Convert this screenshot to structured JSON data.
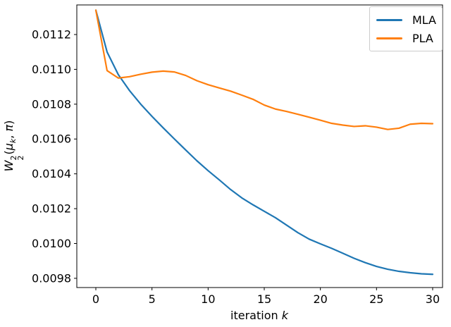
{
  "chart_data": {
    "type": "line",
    "title": "",
    "xlabel": "iteration k",
    "ylabel": "W_2^2(mu_k, pi)",
    "x": [
      0,
      1,
      2,
      3,
      4,
      5,
      6,
      7,
      8,
      9,
      10,
      11,
      12,
      13,
      14,
      15,
      16,
      17,
      18,
      19,
      20,
      21,
      22,
      23,
      24,
      25,
      26,
      27,
      28,
      29,
      30
    ],
    "series": [
      {
        "name": "MLA",
        "color": "#1f77b4",
        "values": [
          0.01134,
          0.0111,
          0.01097,
          0.010878,
          0.0108,
          0.01073,
          0.010664,
          0.0106,
          0.010537,
          0.010475,
          0.010418,
          0.010365,
          0.01031,
          0.010262,
          0.010222,
          0.010185,
          0.010148,
          0.010105,
          0.010062,
          0.010025,
          0.009998,
          0.009972,
          0.009944,
          0.009915,
          0.00989,
          0.009868,
          0.009852,
          0.00984,
          0.009832,
          0.009826,
          0.009823
        ]
      },
      {
        "name": "PLA",
        "color": "#ff7f0e",
        "values": [
          0.01134,
          0.010993,
          0.01095,
          0.010958,
          0.010972,
          0.010984,
          0.01099,
          0.010985,
          0.010965,
          0.010935,
          0.010912,
          0.010893,
          0.010875,
          0.010852,
          0.010828,
          0.010795,
          0.010772,
          0.010758,
          0.010742,
          0.010725,
          0.010708,
          0.01069,
          0.01068,
          0.010672,
          0.010676,
          0.010668,
          0.010655,
          0.010662,
          0.010685,
          0.01069,
          0.010688
        ]
      }
    ],
    "xticks": {
      "values": [
        0,
        5,
        10,
        15,
        20,
        25,
        30
      ],
      "labels": [
        "0",
        "5",
        "10",
        "15",
        "20",
        "25",
        "30"
      ]
    },
    "yticks": {
      "values": [
        0.0098,
        0.01,
        0.0102,
        0.0104,
        0.0106,
        0.0108,
        0.011,
        0.0112
      ],
      "labels": [
        "0.0098",
        "0.0100",
        "0.0102",
        "0.0104",
        "0.0106",
        "0.0108",
        "0.0110",
        "0.0112"
      ]
    },
    "xlim": [
      -1.695,
      30.88
    ],
    "ylim": [
      0.009747,
      0.01137
    ],
    "grid": false,
    "legend_position": "upper right"
  },
  "axes_text": {
    "xlabel_word": "iteration ",
    "xlabel_var": "k",
    "ylabel_base": "W",
    "ylabel_sup": "2",
    "ylabel_sub": "2",
    "ylabel_open": "(",
    "ylabel_mu": "μ",
    "ylabel_mu_sub": "k",
    "ylabel_sep": ", ",
    "ylabel_pi": "π",
    "ylabel_close": ")"
  },
  "style_colors": {
    "spine": "#000000",
    "tick_text": "#000000",
    "legend_border": "#cccccc",
    "background": "#ffffff"
  }
}
